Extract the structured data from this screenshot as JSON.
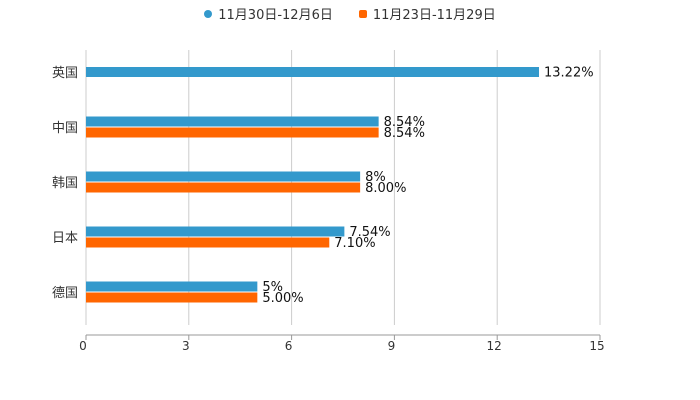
{
  "chart_data": {
    "type": "bar",
    "orientation": "horizontal",
    "categories": [
      "英国",
      "中国",
      "韩国",
      "日本",
      "德国"
    ],
    "series": [
      {
        "name": "11月30日-12月6日",
        "color": "#3399cc",
        "values": [
          13.22,
          8.54,
          8,
          7.54,
          5
        ],
        "labels": [
          "13.22%",
          "8.54%",
          "8%",
          "7.54%",
          "5%"
        ]
      },
      {
        "name": "11月23日-11月29日",
        "color": "#ff6600",
        "values": [
          null,
          8.54,
          8.0,
          7.1,
          5.0
        ],
        "labels": [
          null,
          "8.54%",
          "8.00%",
          "7.10%",
          "5.00%"
        ]
      }
    ],
    "xlim": [
      0,
      15
    ],
    "xticks": [
      "0",
      "3",
      "6",
      "9",
      "12",
      "15"
    ],
    "grid": true,
    "legend_position": "top-center"
  }
}
